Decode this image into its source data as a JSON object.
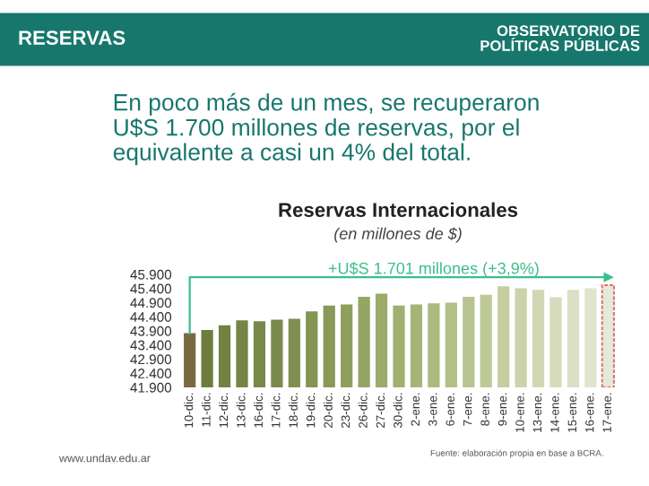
{
  "chart_data": {
    "type": "bar",
    "title": "Reservas Internacionales",
    "subtitle": "(en millones de $)",
    "categories": [
      "10-dic.",
      "11-dic.",
      "12-dic.",
      "13-dic.",
      "16-dic.",
      "17-dic.",
      "18-dic.",
      "19-dic.",
      "20-dic.",
      "23-dic.",
      "26-dic.",
      "27-dic.",
      "30-dic.",
      "2-ene.",
      "3-ene.",
      "6-ene.",
      "7-ene.",
      "8-ene.",
      "9-ene.",
      "10-ene.",
      "13-ene.",
      "14-ene.",
      "15-ene.",
      "16-ene.",
      "17-ene."
    ],
    "values": [
      43820,
      43930,
      44100,
      44270,
      44240,
      44300,
      44330,
      44590,
      44800,
      44840,
      45110,
      45220,
      44800,
      44840,
      44880,
      44900,
      45110,
      45180,
      45480,
      45410,
      45350,
      45090,
      45350,
      45410,
      45520
    ],
    "colors": [
      "#7a6a40",
      "#6e7d3f",
      "#718242",
      "#748545",
      "#778848",
      "#7a8b4b",
      "#7e8f4f",
      "#839453",
      "#889958",
      "#8e9f5e",
      "#94a564",
      "#9aab6a",
      "#a0b070",
      "#a6b577",
      "#acba7f",
      "#b2bf87",
      "#b8c48f",
      "#bec998",
      "#c4cea1",
      "#cad3aa",
      "#d0d8b3",
      "#d5dcbb",
      "#dae0c4",
      "#dfe4cc",
      "#e6e8dc"
    ],
    "ylim": [
      41900,
      45900
    ],
    "yticks": [
      {
        "value": 41900,
        "label": "41.900"
      },
      {
        "value": 42400,
        "label": "42.400"
      },
      {
        "value": 42900,
        "label": "42.900"
      },
      {
        "value": 43400,
        "label": "43.400"
      },
      {
        "value": 43900,
        "label": "43.900"
      },
      {
        "value": 44400,
        "label": "44.400"
      },
      {
        "value": 44900,
        "label": "44.900"
      },
      {
        "value": 45400,
        "label": "45.400"
      },
      {
        "value": 45900,
        "label": "45.900"
      }
    ],
    "grid": false,
    "annotations": [
      "+U$S 1.701 millones (+3,9%)",
      "RESERVAS",
      "OBSERVATORIO DE\nPOLÍTICAS PÚBLICAS",
      "En poco más de un mes, se recuperaron\nU$S 1.700 millones de reservas, por el\nequivalente a casi un 4% del total.",
      "www.undav.edu.ar",
      "Fuente: elaboración propia en base a BCRA."
    ]
  }
}
